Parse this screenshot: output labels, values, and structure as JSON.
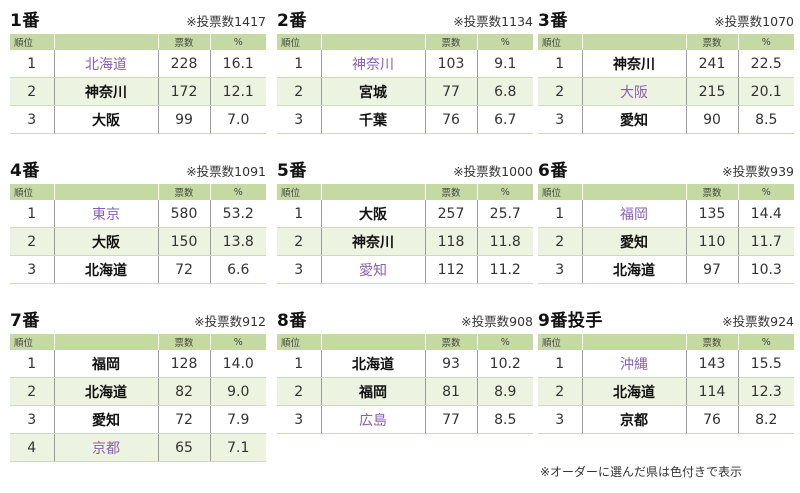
{
  "header_labels": {
    "rank": "順位",
    "count": "票数",
    "pct": "%"
  },
  "footnote": "※オーダーに選んだ県は色付きで表示",
  "blocks": [
    {
      "title": "1番",
      "votes": "※投票数1417",
      "rows": [
        {
          "rank": "1",
          "pref": "北海道",
          "count": "228",
          "pct": "16.1",
          "selected": true
        },
        {
          "rank": "2",
          "pref": "神奈川",
          "count": "172",
          "pct": "12.1",
          "selected": false
        },
        {
          "rank": "3",
          "pref": "大阪",
          "count": "99",
          "pct": "7.0",
          "selected": false
        }
      ]
    },
    {
      "title": "2番",
      "votes": "※投票数1134",
      "rows": [
        {
          "rank": "1",
          "pref": "神奈川",
          "count": "103",
          "pct": "9.1",
          "selected": true
        },
        {
          "rank": "2",
          "pref": "宮城",
          "count": "77",
          "pct": "6.8",
          "selected": false
        },
        {
          "rank": "3",
          "pref": "千葉",
          "count": "76",
          "pct": "6.7",
          "selected": false
        }
      ]
    },
    {
      "title": "3番",
      "votes": "※投票数1070",
      "rows": [
        {
          "rank": "1",
          "pref": "神奈川",
          "count": "241",
          "pct": "22.5",
          "selected": false
        },
        {
          "rank": "2",
          "pref": "大阪",
          "count": "215",
          "pct": "20.1",
          "selected": true
        },
        {
          "rank": "3",
          "pref": "愛知",
          "count": "90",
          "pct": "8.5",
          "selected": false
        }
      ]
    },
    {
      "title": "4番",
      "votes": "※投票数1091",
      "rows": [
        {
          "rank": "1",
          "pref": "東京",
          "count": "580",
          "pct": "53.2",
          "selected": true
        },
        {
          "rank": "2",
          "pref": "大阪",
          "count": "150",
          "pct": "13.8",
          "selected": false
        },
        {
          "rank": "3",
          "pref": "北海道",
          "count": "72",
          "pct": "6.6",
          "selected": false
        }
      ]
    },
    {
      "title": "5番",
      "votes": "※投票数1000",
      "rows": [
        {
          "rank": "1",
          "pref": "大阪",
          "count": "257",
          "pct": "25.7",
          "selected": false
        },
        {
          "rank": "2",
          "pref": "神奈川",
          "count": "118",
          "pct": "11.8",
          "selected": false
        },
        {
          "rank": "3",
          "pref": "愛知",
          "count": "112",
          "pct": "11.2",
          "selected": true
        }
      ]
    },
    {
      "title": "6番",
      "votes": "※投票数939",
      "rows": [
        {
          "rank": "1",
          "pref": "福岡",
          "count": "135",
          "pct": "14.4",
          "selected": true
        },
        {
          "rank": "2",
          "pref": "愛知",
          "count": "110",
          "pct": "11.7",
          "selected": false
        },
        {
          "rank": "3",
          "pref": "北海道",
          "count": "97",
          "pct": "10.3",
          "selected": false
        }
      ]
    },
    {
      "title": "7番",
      "votes": "※投票数912",
      "rows": [
        {
          "rank": "1",
          "pref": "福岡",
          "count": "128",
          "pct": "14.0",
          "selected": false
        },
        {
          "rank": "2",
          "pref": "北海道",
          "count": "82",
          "pct": "9.0",
          "selected": false
        },
        {
          "rank": "3",
          "pref": "愛知",
          "count": "72",
          "pct": "7.9",
          "selected": false
        },
        {
          "rank": "4",
          "pref": "京都",
          "count": "65",
          "pct": "7.1",
          "selected": true
        }
      ]
    },
    {
      "title": "8番",
      "votes": "※投票数908",
      "rows": [
        {
          "rank": "1",
          "pref": "北海道",
          "count": "93",
          "pct": "10.2",
          "selected": false
        },
        {
          "rank": "2",
          "pref": "福岡",
          "count": "81",
          "pct": "8.9",
          "selected": false
        },
        {
          "rank": "3",
          "pref": "広島",
          "count": "77",
          "pct": "8.5",
          "selected": true
        }
      ]
    },
    {
      "title": "9番投手",
      "votes": "※投票数924",
      "rows": [
        {
          "rank": "1",
          "pref": "沖縄",
          "count": "143",
          "pct": "15.5",
          "selected": true
        },
        {
          "rank": "2",
          "pref": "北海道",
          "count": "114",
          "pct": "12.3",
          "selected": false
        },
        {
          "rank": "3",
          "pref": "京都",
          "count": "76",
          "pct": "8.2",
          "selected": false
        }
      ]
    }
  ]
}
